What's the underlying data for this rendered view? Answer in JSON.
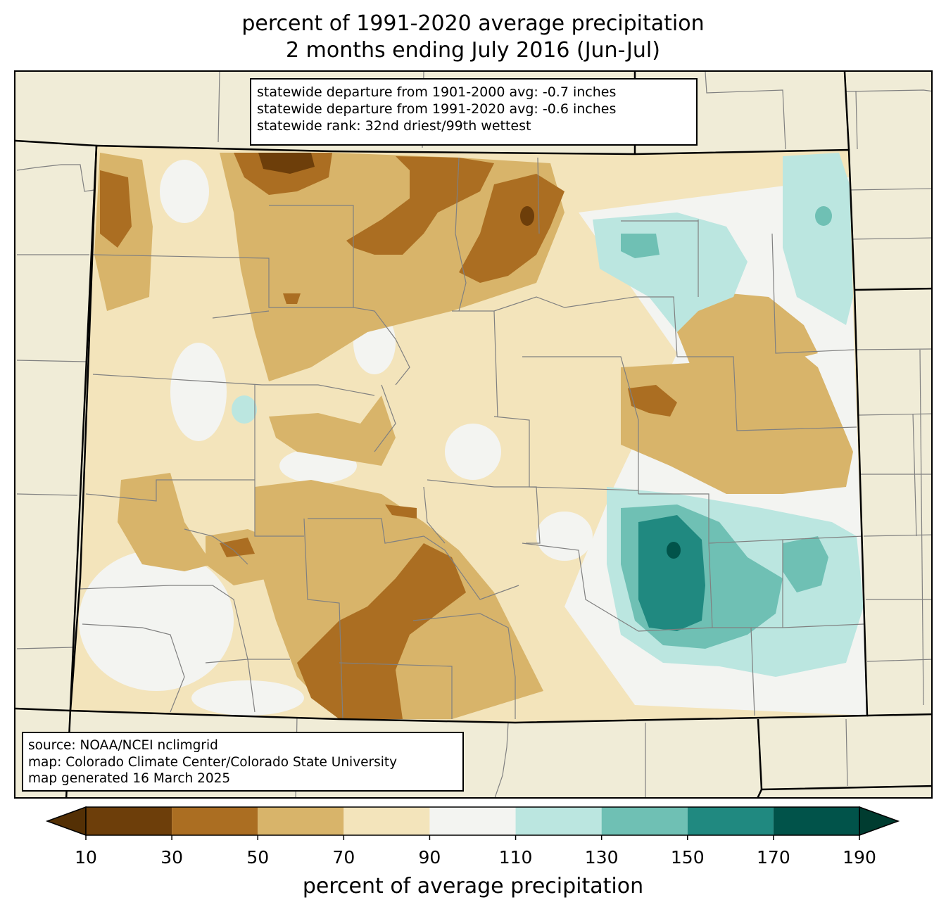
{
  "title": {
    "line1": "percent of 1991-2020 average precipitation",
    "line2": "2 months ending July 2016 (Jun-Jul)"
  },
  "stats_box": {
    "line1": "statewide departure from 1901-2000 avg: -0.7 inches",
    "line2": "statewide departure from 1991-2020 avg: -0.6 inches",
    "line3": "statewide rank: 32nd driest/99th wettest"
  },
  "source_box": {
    "line1": "source: NOAA/NCEI nclimgrid",
    "line2": "map: Colorado Climate Center/Colorado State University",
    "line3": "map generated 16 March 2025"
  },
  "colorbar": {
    "label": "percent of average precipitation",
    "ticks": [
      "10",
      "30",
      "50",
      "70",
      "90",
      "110",
      "130",
      "150",
      "170",
      "190"
    ],
    "bins": [
      {
        "from": 10,
        "to": 30,
        "color": "#6d3e0a"
      },
      {
        "from": 30,
        "to": 50,
        "color": "#ab6e22"
      },
      {
        "from": 50,
        "to": 70,
        "color": "#d8b46a"
      },
      {
        "from": 70,
        "to": 90,
        "color": "#f3e4bb"
      },
      {
        "from": 90,
        "to": 110,
        "color": "#f3f4f1"
      },
      {
        "from": 110,
        "to": 130,
        "color": "#bbe6e0"
      },
      {
        "from": 130,
        "to": 150,
        "color": "#6fc0b4"
      },
      {
        "from": 150,
        "to": 170,
        "color": "#208980"
      },
      {
        "from": 170,
        "to": 190,
        "color": "#01534a"
      }
    ],
    "under_color": "#543005",
    "over_color": "#003c30"
  },
  "colors": {
    "background_land": "#f0ecd7",
    "county_lines": "#808080",
    "state_lines": "#000000"
  }
}
